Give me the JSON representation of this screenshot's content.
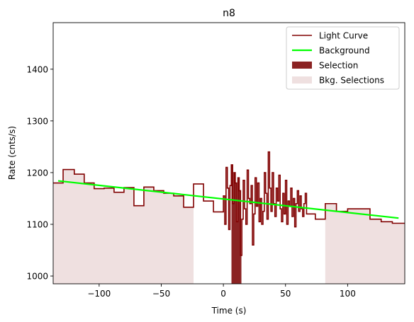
{
  "chart_data": {
    "type": "line",
    "title": "n8",
    "xlabel": "Time (s)",
    "ylabel": "Rate (cnts/s)",
    "xlim": [
      -137,
      146
    ],
    "ylim": [
      985,
      1490
    ],
    "xticks": [
      -100,
      -50,
      0,
      50,
      100
    ],
    "yticks": [
      1000,
      1100,
      1200,
      1300,
      1400
    ],
    "grid": false,
    "legend_position": "top-right",
    "legend": [
      {
        "label": "Light Curve",
        "kind": "line",
        "color": "#800000"
      },
      {
        "label": "Background",
        "kind": "line",
        "color": "#00ff00"
      },
      {
        "label": "Selection",
        "kind": "patch",
        "color": "#8b2323"
      },
      {
        "label": "Bkg. Selections",
        "kind": "patch",
        "color": "#efe0e0"
      }
    ],
    "bkg_selections": [
      [
        -137,
        -24
      ],
      [
        82,
        146
      ]
    ],
    "selection": [
      6.5,
      14.5
    ],
    "background_line": {
      "x": [
        -133,
        141
      ],
      "y": [
        1184,
        1112
      ]
    },
    "light_curve": {
      "coarse_steps": [
        [
          -137,
          -129,
          1180
        ],
        [
          -129,
          -120,
          1206
        ],
        [
          -120,
          -112,
          1197
        ],
        [
          -112,
          -104,
          1180
        ],
        [
          -104,
          -96,
          1169
        ],
        [
          -96,
          -88,
          1170
        ],
        [
          -88,
          -80,
          1162
        ],
        [
          -80,
          -72,
          1171
        ],
        [
          -72,
          -64,
          1136
        ],
        [
          -64,
          -56,
          1172
        ],
        [
          -56,
          -48,
          1165
        ],
        [
          -48,
          -40,
          1160
        ],
        [
          -40,
          -32,
          1155
        ],
        [
          -32,
          -24,
          1133
        ],
        [
          -24,
          -16,
          1178
        ],
        [
          -16,
          -8,
          1145
        ],
        [
          -8,
          0,
          1124
        ],
        [
          68,
          74,
          1120
        ],
        [
          74,
          82,
          1110
        ],
        [
          82,
          91,
          1140
        ],
        [
          91,
          100,
          1125
        ],
        [
          100,
          109,
          1130
        ],
        [
          109,
          118,
          1130
        ],
        [
          118,
          127,
          1110
        ],
        [
          127,
          136,
          1105
        ],
        [
          136,
          146,
          1102
        ]
      ],
      "fine_values": [
        1155,
        1100,
        1210,
        1170,
        1090,
        1175,
        1215,
        1140,
        1200,
        1180,
        1105,
        1190,
        1165,
        1040,
        1110,
        1185,
        1130,
        1100,
        1205,
        1150,
        1140,
        1175,
        1060,
        1120,
        1190,
        1135,
        1180,
        1105,
        1150,
        1100,
        1125,
        1200,
        1160,
        1110,
        1240,
        1170,
        1125,
        1200,
        1140,
        1115,
        1170,
        1145,
        1195,
        1130,
        1105,
        1160,
        1120,
        1185,
        1100,
        1145,
        1135,
        1170,
        1115,
        1150,
        1095,
        1140,
        1165,
        1125,
        1155,
        1130,
        1115,
        1140,
        1160,
        1120
      ],
      "fine_x_start": 0,
      "fine_x_end": 68
    }
  }
}
